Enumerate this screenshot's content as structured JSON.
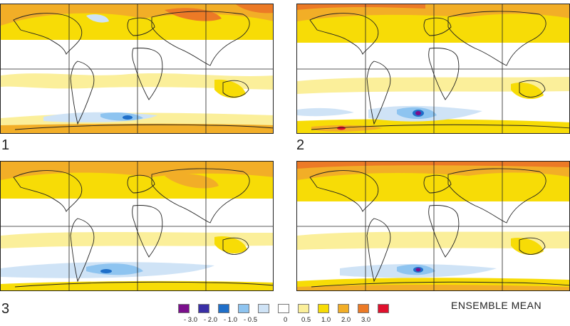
{
  "panels": [
    {
      "label": "1"
    },
    {
      "label": "2"
    },
    {
      "label": "3"
    },
    {
      "label": "ENSEMBLE MEAN"
    }
  ],
  "legend": {
    "items": [
      {
        "color": "#7b0f8c"
      },
      {
        "color": "#3a2fa6"
      },
      {
        "color": "#1f6fc9"
      },
      {
        "color": "#8ec4f0"
      },
      {
        "color": "#cfe3f6"
      },
      {
        "color": "#ffffff"
      },
      {
        "color": "#fbef9a"
      },
      {
        "color": "#f7dc06"
      },
      {
        "color": "#f2ae27"
      },
      {
        "color": "#ec7a26"
      },
      {
        "color": "#e0102d"
      }
    ],
    "ticks": [
      "- 3.0",
      "- 2.0",
      "- 1.0",
      "- 0.5",
      "0",
      "0.5",
      "1.0",
      "2.0",
      "3.0"
    ]
  },
  "colors": {
    "warm_light": "#fbef9a",
    "warm": "#f7dc06",
    "warm_strong": "#f2ae27",
    "hot": "#ec7a26",
    "very_hot": "#e0102d",
    "cool_light": "#cfe3f6",
    "cool": "#8ec4f0",
    "cold": "#1f6fc9",
    "very_cold": "#7b0f8c"
  }
}
